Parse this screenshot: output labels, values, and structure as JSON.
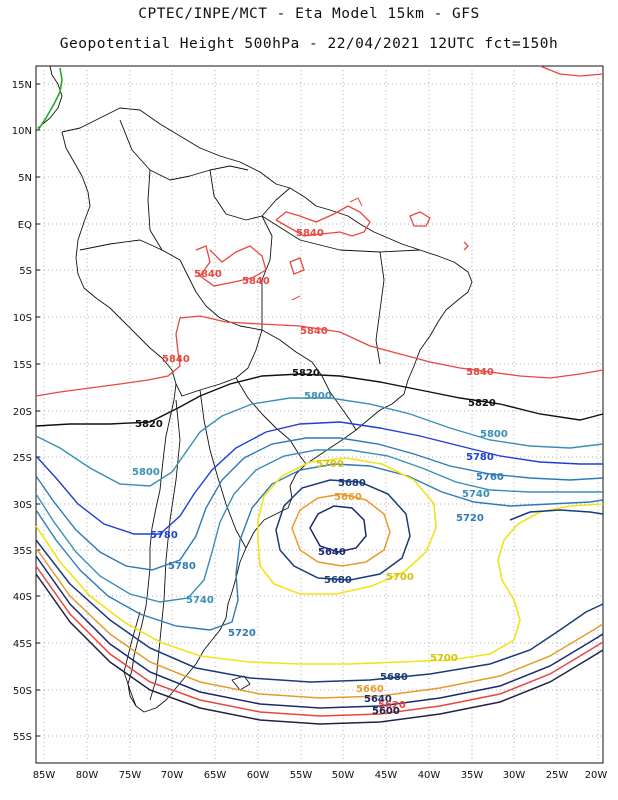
{
  "title_line1": "CPTEC/INPE/MCT -  Eta Model 15km - GFS",
  "title_line2": "Geopotential Height 500hPa - 22/04/2021 12UTC fct=150h",
  "lat_labels": [
    "15N",
    "10N",
    "5N",
    "EQ",
    "5S",
    "10S",
    "15S",
    "20S",
    "25S",
    "30S",
    "35S",
    "40S",
    "45S",
    "50S",
    "55S"
  ],
  "lon_labels": [
    "85W",
    "80W",
    "75W",
    "70W",
    "65W",
    "60W",
    "55W",
    "50W",
    "45W",
    "40W",
    "35W",
    "30W",
    "25W",
    "20W"
  ],
  "colors": {
    "c5840": "#e8473f",
    "c5820": "#111111",
    "c5800": "#3a8fb7",
    "c5780": "#1f3fd6",
    "c5760": "#2f79b8",
    "c5740": "#3a8fb7",
    "c5720": "#2f79b8",
    "c5700": "#f2e318",
    "c5680": "#1b3b78",
    "c5660": "#e79c2a",
    "c5640": "#1a2a72",
    "c5620": "#e8473f",
    "c5600": "#222244",
    "coast": "#111111",
    "grid": "#9a9a9a",
    "green": "#22aa22"
  },
  "contour_labels": [
    {
      "id": "l5840a",
      "text": "5840"
    },
    {
      "id": "l5840b",
      "text": "5840"
    },
    {
      "id": "l5840c",
      "text": "5840"
    },
    {
      "id": "l5840d",
      "text": "5840"
    },
    {
      "id": "l5840e",
      "text": "5840"
    },
    {
      "id": "l5840f",
      "text": "5840"
    },
    {
      "id": "l5820a",
      "text": "5820"
    },
    {
      "id": "l5820b",
      "text": "5820"
    },
    {
      "id": "l5820c",
      "text": "5820"
    },
    {
      "id": "l5800a",
      "text": "5800"
    },
    {
      "id": "l5800b",
      "text": "5800"
    },
    {
      "id": "l5800c",
      "text": "5800"
    },
    {
      "id": "l5780a",
      "text": "5780"
    },
    {
      "id": "l5780b",
      "text": "5780"
    },
    {
      "id": "l5780c",
      "text": "5780"
    },
    {
      "id": "l5760a",
      "text": "5760"
    },
    {
      "id": "l5760b",
      "text": "5760"
    },
    {
      "id": "l5740a",
      "text": "5740"
    },
    {
      "id": "l5740b",
      "text": "5740"
    },
    {
      "id": "l5720a",
      "text": "5720"
    },
    {
      "id": "l5720b",
      "text": "5720"
    },
    {
      "id": "l5700a",
      "text": "5700"
    },
    {
      "id": "l5700b",
      "text": "5700"
    },
    {
      "id": "l5700c",
      "text": "5700"
    },
    {
      "id": "l5680a",
      "text": "5680"
    },
    {
      "id": "l5680b",
      "text": "5680"
    },
    {
      "id": "l5680c",
      "text": "5680"
    },
    {
      "id": "l5660a",
      "text": "5660"
    },
    {
      "id": "l5660b",
      "text": "5660"
    },
    {
      "id": "l5640a",
      "text": "5640"
    },
    {
      "id": "l5640b",
      "text": "5640"
    },
    {
      "id": "l5620a",
      "text": "5620"
    },
    {
      "id": "l5600a",
      "text": "5600"
    }
  ]
}
